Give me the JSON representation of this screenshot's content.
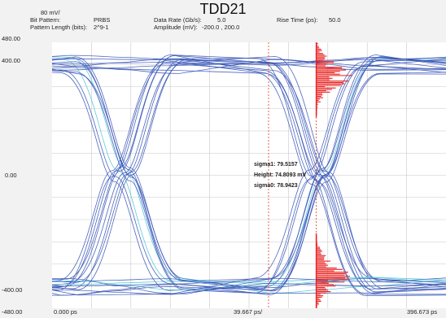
{
  "header": {
    "title": "TDD21",
    "scale_per_div": "80 mV/",
    "bit_pattern_label": "Bit Pattern:",
    "bit_pattern_value": "PRBS",
    "pattern_length_label": "Pattern Length (bits):",
    "pattern_length_value": "2^9-1",
    "data_rate_label": "Data Rate (Gb/s):",
    "data_rate_value": "5.0",
    "amplitude_label": "Amplitude (mV):",
    "amplitude_value": "-200.0 , 200.0",
    "rise_time_label": "Rise Time (ps):",
    "rise_time_value": "50.0"
  },
  "chart_data": {
    "type": "line",
    "subtype": "eye-diagram",
    "title": "TDD21",
    "y_tick_labels": [
      "480.00",
      "400.00",
      "0.00",
      "-400.00",
      "-480.00"
    ],
    "x_tick_labels": [
      "0.000 ps",
      "39.667 ps/",
      "396.673 ps"
    ],
    "ylim": [
      -480,
      480
    ],
    "xlim": [
      0,
      396.673
    ],
    "x_per_div_ps": 39.667,
    "y_per_div_mV": 80,
    "grid": true,
    "levels_mV": {
      "high": 400,
      "low": -400
    },
    "unit_interval_ps": 200,
    "crossing_points_ps": [
      70,
      270
    ],
    "markers_ps": [
      218,
      266
    ],
    "annotations": {
      "sigma1": "sigma1: 79.5157",
      "height": "Height: 74.8093 mV",
      "sigma0": "sigma0: 78.9423"
    },
    "colors": {
      "traces": "#3a56b8",
      "traces_highlight": "#4fc6d8",
      "histogram": "#e8201f",
      "markers": "#e03a1a",
      "grid": "#c8c8c8",
      "background": "#ffffff"
    }
  }
}
